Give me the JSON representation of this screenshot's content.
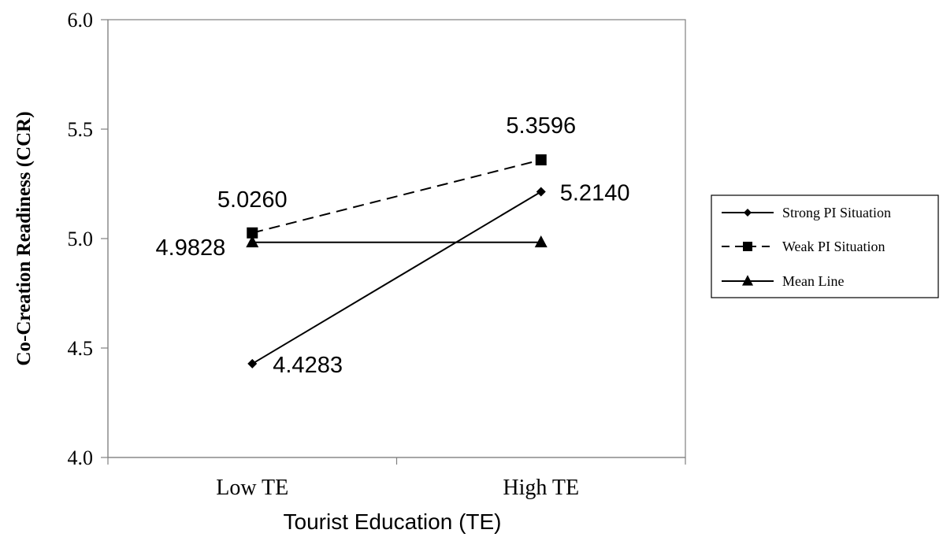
{
  "chart_data": {
    "type": "line",
    "categories": [
      "Low TE",
      "High TE"
    ],
    "series": [
      {
        "name": "Strong PI Situation",
        "values": [
          4.4283,
          5.214
        ],
        "labels": [
          "4.4283",
          "5.2140"
        ],
        "marker": "diamond",
        "dash": "solid",
        "color": "#000000"
      },
      {
        "name": "Weak PI Situation",
        "values": [
          5.026,
          5.3596
        ],
        "labels": [
          "5.0260",
          "5.3596"
        ],
        "marker": "square",
        "dash": "dashed",
        "color": "#000000"
      },
      {
        "name": "Mean Line",
        "values": [
          4.9828,
          4.9828
        ],
        "labels": [
          "4.9828",
          ""
        ],
        "marker": "triangle",
        "dash": "solid",
        "color": "#000000"
      }
    ],
    "xlabel": "Tourist Education (TE)",
    "ylabel": "Co-Creation Readiness (CCR)",
    "ylim": [
      4.0,
      6.0
    ],
    "yticks": [
      "4.0",
      "4.5",
      "5.0",
      "5.5",
      "6.0"
    ],
    "grid": false,
    "legend_position": "right"
  }
}
